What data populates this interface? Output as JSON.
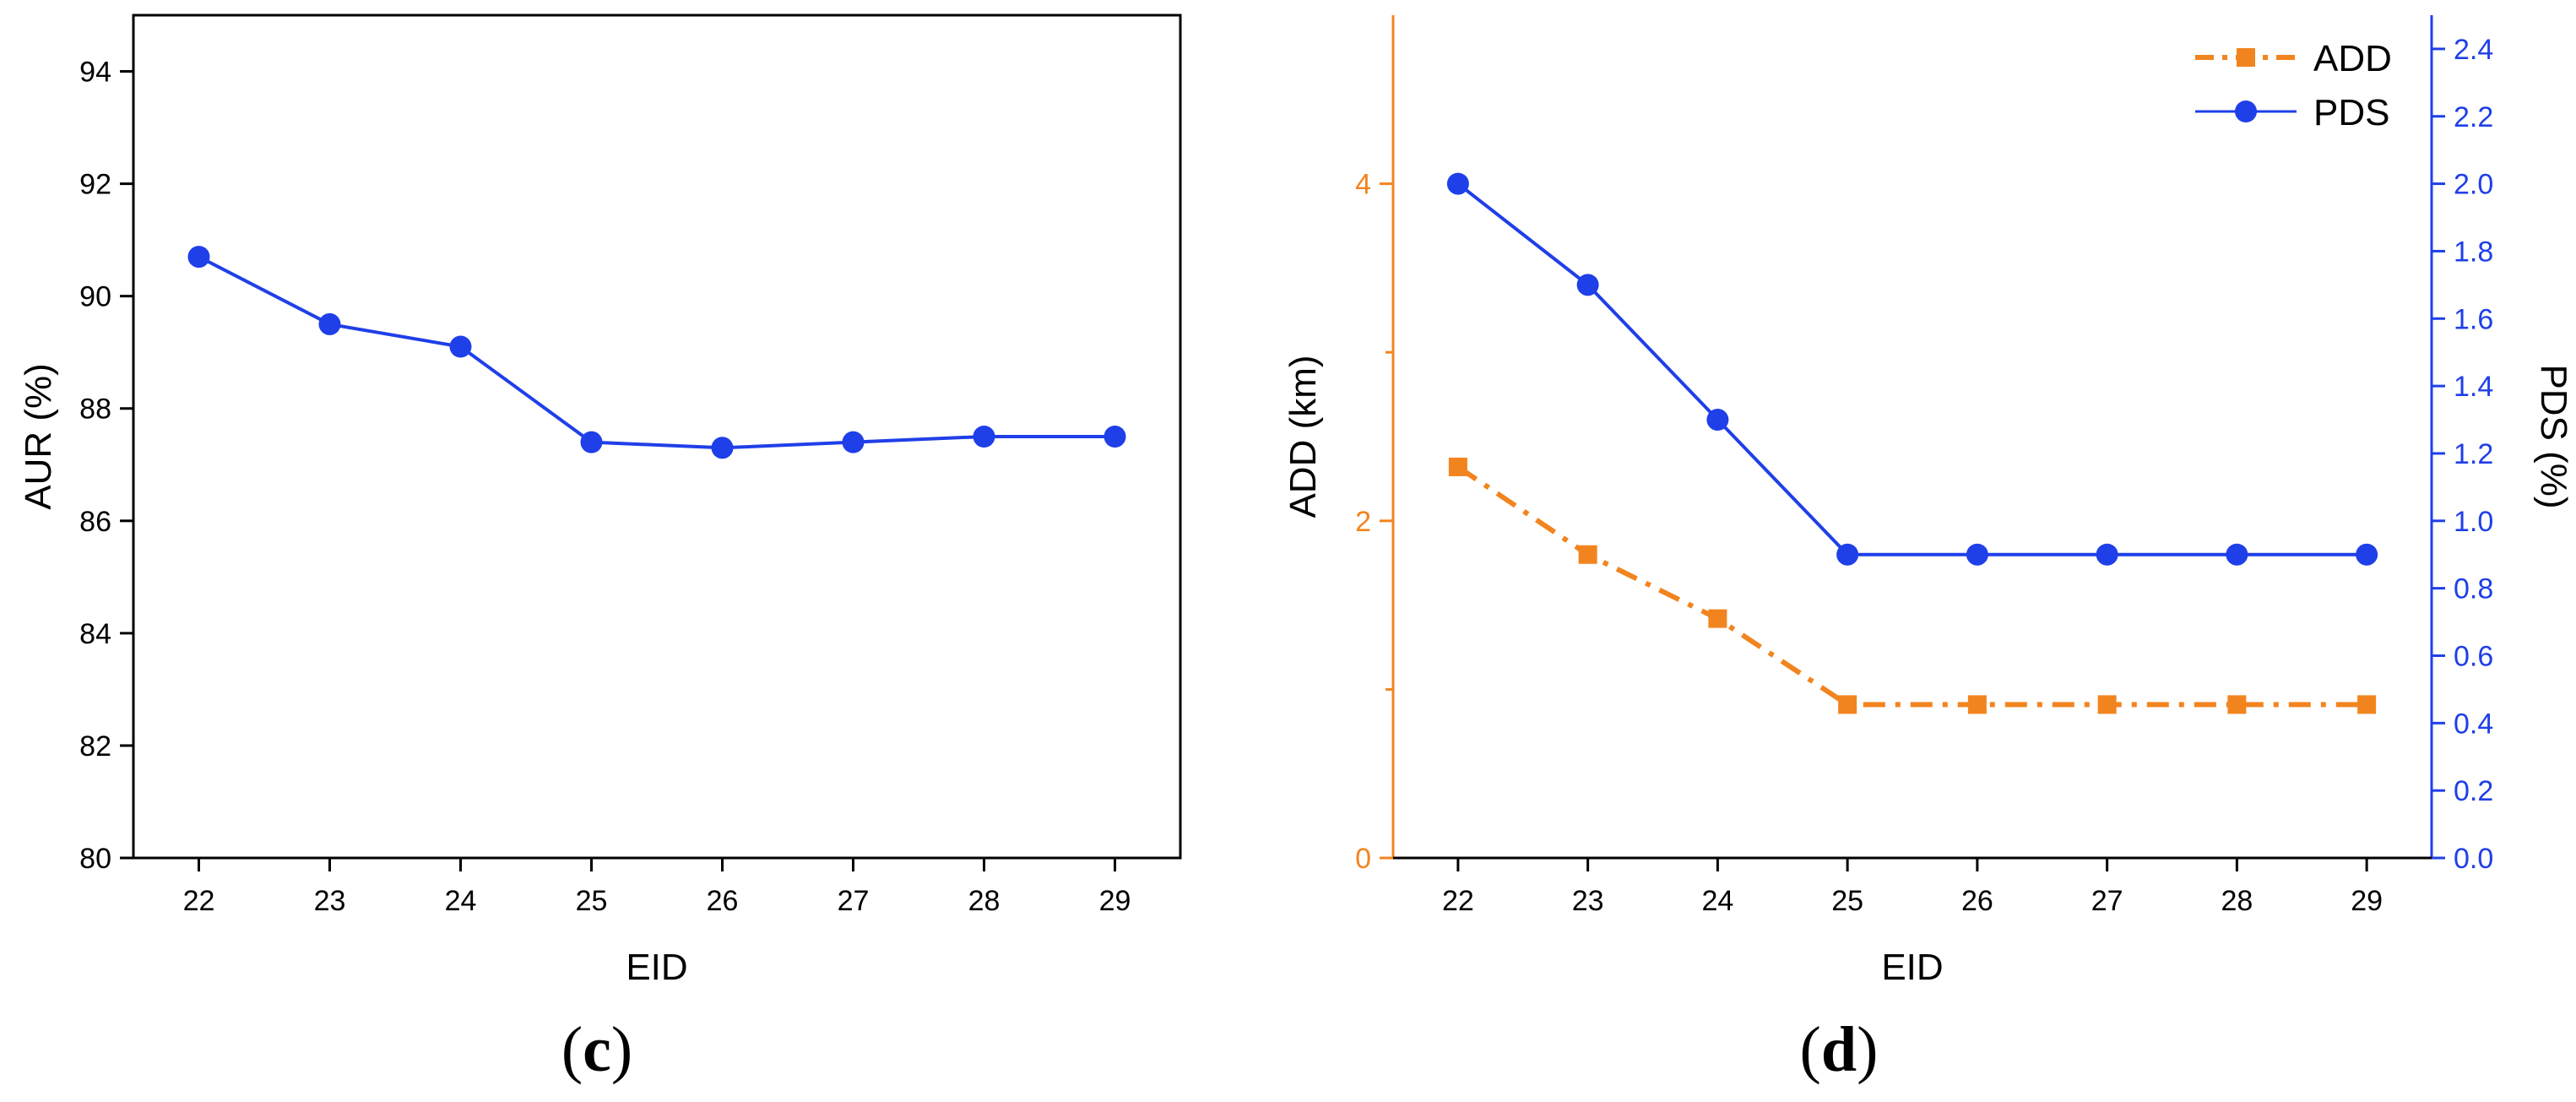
{
  "panels": [
    {
      "label_prefix": "(",
      "label_letter": "c",
      "label_suffix": ")"
    },
    {
      "label_prefix": "(",
      "label_letter": "d",
      "label_suffix": ")"
    }
  ],
  "chart_data": [
    {
      "type": "line",
      "xlabel": "EID",
      "ylabel": "AUR (%)",
      "x": [
        22,
        23,
        24,
        25,
        26,
        27,
        28,
        29
      ],
      "xlim": [
        21.5,
        29.5
      ],
      "ylim": [
        80,
        95
      ],
      "yticks": [
        80,
        82,
        84,
        86,
        88,
        90,
        92,
        94
      ],
      "grid": false,
      "series": [
        {
          "values": [
            90.7,
            89.5,
            89.1,
            87.4,
            87.3,
            87.4,
            87.5,
            87.5
          ],
          "color": "#1f3fe8",
          "marker": "circle",
          "axis": "left"
        }
      ]
    },
    {
      "type": "line",
      "xlabel": "EID",
      "ylabel": "ADD (km)",
      "y2label": "PDS (%)",
      "x": [
        22,
        23,
        24,
        25,
        26,
        27,
        28,
        29
      ],
      "xlim": [
        21.5,
        29.5
      ],
      "ylim": [
        0,
        5
      ],
      "yticks": [
        0,
        2,
        4
      ],
      "y2lim": [
        0,
        2.5
      ],
      "y2ticks": [
        "0.0",
        "0.2",
        "0.4",
        "0.6",
        "0.8",
        "1.0",
        "1.2",
        "1.4",
        "1.6",
        "1.8",
        "2.0",
        "2.2",
        "2.4"
      ],
      "grid": false,
      "legend_position": "top-right",
      "left_axis_color": "#f2841f",
      "right_axis_color": "#1f3fe8",
      "series": [
        {
          "name": "ADD",
          "values": [
            2.32,
            1.8,
            1.42,
            0.91,
            0.91,
            0.91,
            0.91,
            0.91
          ],
          "color": "#f2841f",
          "marker": "square",
          "linestyle": "dash-dot",
          "axis": "left"
        },
        {
          "name": "PDS",
          "values": [
            2.0,
            1.7,
            1.3,
            0.9,
            0.9,
            0.9,
            0.9,
            0.9
          ],
          "color": "#1f3fe8",
          "marker": "circle",
          "linestyle": "solid",
          "axis": "right"
        }
      ]
    }
  ]
}
